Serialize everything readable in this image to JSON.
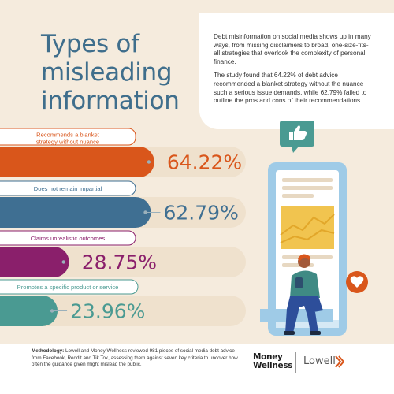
{
  "title": "Types of\nmisleading\ninformation",
  "intro": {
    "p1": "Debt misinformation on social media shows up in many ways, from missing disclaimers to broad, one-size-fits-all strategies that overlook the complexity of personal finance.",
    "p2": "The study found that 64.22% of debt advice recommended a blanket strategy without the nuance such a serious issue demands, while 62.79% failed to outline the pros and cons of their recommendations."
  },
  "chart_data": {
    "type": "bar",
    "orientation": "horizontal",
    "categories": [
      "Recommends a blanket strategy without nuance",
      "Does not remain impartial",
      "Claims unrealistic outcomes",
      "Promotes a specific product or service"
    ],
    "value_labels": [
      "64.22%",
      "62.79%",
      "28.75%",
      "23.96%"
    ],
    "values": [
      64.22,
      62.79,
      28.75,
      23.96
    ],
    "unit": "%",
    "colors": [
      "#d9561b",
      "#3f6f92",
      "#8a1f6b",
      "#4a9a92"
    ]
  },
  "footer": {
    "methodology_label": "Methodology:",
    "methodology_text": " Lowell and Money Wellness reviewed 981 pieces of social media debt advice from Facebook, Reddit and Tik Tok, assessing them against seven key criteria to uncover how often the guidance given might mislead the public.",
    "logo_money_wellness": "Money\nWellness",
    "logo_lowell": "Lowell"
  },
  "icons": [
    "thumbs-up-icon",
    "heart-icon",
    "phone-illustration",
    "person-illustration"
  ],
  "colors": {
    "background": "#f5ebdd",
    "title": "#3f6e8c",
    "track": "#efe1cd"
  }
}
